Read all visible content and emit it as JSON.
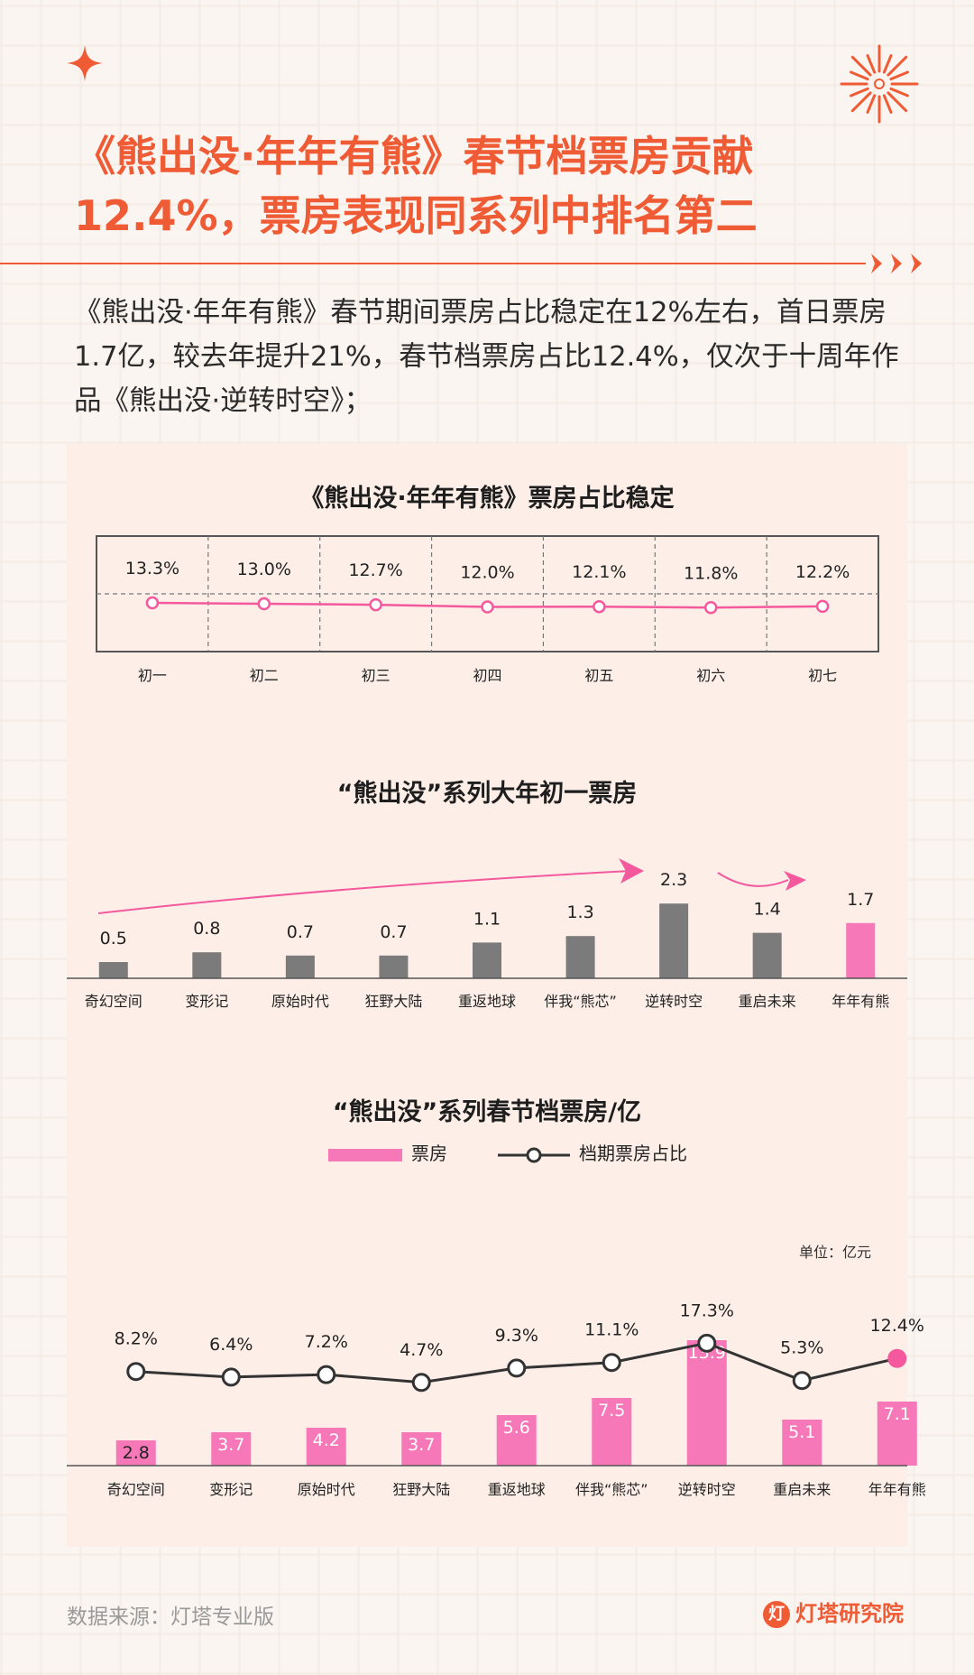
{
  "title_line1": "《熊出没·年年有熊》春节档票房贡献",
  "title_line2": "12.4%，票房表现同系列中排名第二",
  "intro": "《熊出没·年年有熊》春节期间票房占比稳定在12%左右，首日票房1.7亿，较去年提升21%，春节档票房占比12.4%，仅次于十周年作品《熊出没·逆转时空》；",
  "colors": {
    "accent": "#ef5b35",
    "pink": "#f4599d",
    "pink_bar": "#f778b8",
    "gray_bar": "#7b7b7b",
    "line": "#333333"
  },
  "source": "数据来源：灯塔专业版",
  "brand": "灯塔研究院",
  "unit_label": "单位：亿元",
  "legend": {
    "bar": "票房",
    "line": "档期票房占比"
  },
  "chart_data": [
    {
      "type": "line",
      "title": "《熊出没·年年有熊》票房占比稳定",
      "categories": [
        "初一",
        "初二",
        "初三",
        "初四",
        "初五",
        "初六",
        "初七"
      ],
      "values": [
        13.3,
        13.0,
        12.7,
        12.0,
        12.1,
        11.8,
        12.2
      ],
      "labels": [
        "13.3%",
        "13.0%",
        "12.7%",
        "12.0%",
        "12.1%",
        "11.8%",
        "12.2%"
      ],
      "color": "#f4599d"
    },
    {
      "type": "bar",
      "title": "“熊出没”系列大年初一票房",
      "categories": [
        "奇幻空间",
        "变形记",
        "原始时代",
        "狂野大陆",
        "重返地球",
        "伴我“熊芯”",
        "逆转时空",
        "重启未来",
        "年年有熊"
      ],
      "values": [
        0.5,
        0.8,
        0.7,
        0.7,
        1.1,
        1.3,
        2.3,
        1.4,
        1.7
      ],
      "highlight_index": 8
    },
    {
      "type": "bar",
      "title": "“熊出没”系列春节档票房/亿",
      "categories": [
        "奇幻空间",
        "变形记",
        "原始时代",
        "狂野大陆",
        "重返地球",
        "伴我“熊芯”",
        "逆转时空",
        "重启未来",
        "年年有熊"
      ],
      "series": [
        {
          "name": "票房",
          "type": "bar",
          "values": [
            2.8,
            3.7,
            4.2,
            3.7,
            5.6,
            7.5,
            13.9,
            5.1,
            7.1
          ]
        },
        {
          "name": "档期票房占比",
          "type": "line",
          "values": [
            8.2,
            6.4,
            7.2,
            4.7,
            9.3,
            11.1,
            17.3,
            5.3,
            12.4
          ],
          "labels": [
            "8.2%",
            "6.4%",
            "7.2%",
            "4.7%",
            "9.3%",
            "11.1%",
            "17.3%",
            "5.3%",
            "12.4%"
          ]
        }
      ],
      "highlight_index": 8
    }
  ]
}
